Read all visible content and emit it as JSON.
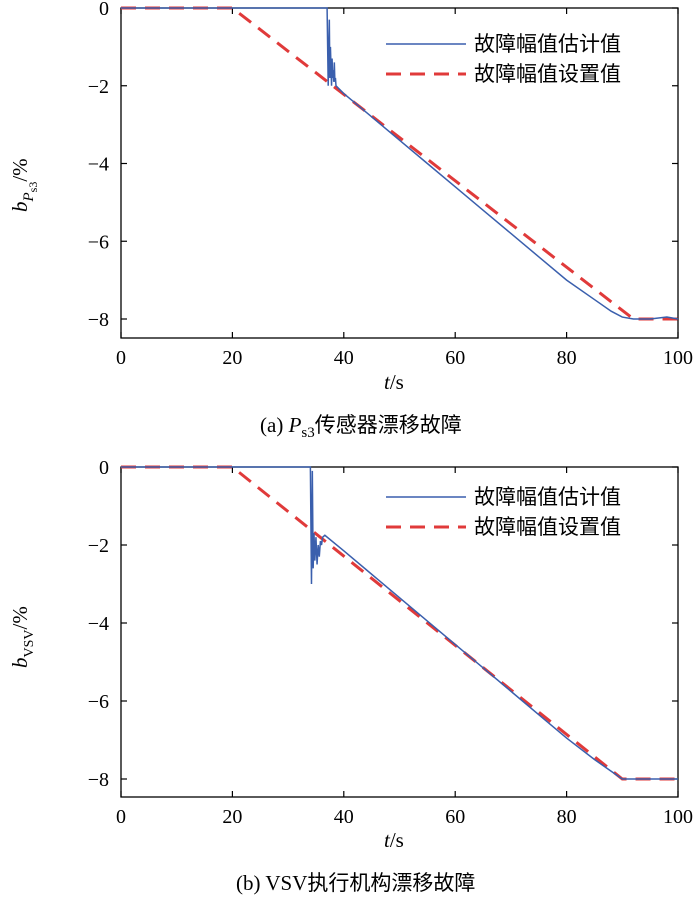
{
  "figure": {
    "colors": {
      "estimate": "#3a5fad",
      "setpoint": "#e03a3a",
      "axis": "#000000"
    }
  },
  "chart_data": [
    {
      "type": "line",
      "caption": "(a) Ps3传感器漂移故障",
      "caption_parts": {
        "prefix": "(a) ",
        "var": "P",
        "sub": "s3",
        "rest": "传感器漂移故障"
      },
      "xlabel": "t/s",
      "xlabel_parts": {
        "var": "t",
        "unit": "/s"
      },
      "ylabel": "bPs3/%",
      "ylabel_parts": {
        "var": "b",
        "sub1": "P",
        "sub2": "s3",
        "unit": "/%"
      },
      "xlim": [
        0,
        100
      ],
      "ylim": [
        -8.6,
        0
      ],
      "xticks": [
        "0",
        "20",
        "40",
        "60",
        "80",
        "100"
      ],
      "yticks": [
        "0",
        "−2",
        "−4",
        "−6",
        "−8"
      ],
      "legend": {
        "position": "top-right"
      },
      "series": [
        {
          "name": "故障幅值估计值",
          "style": "solid",
          "x": [
            0,
            37,
            37.2,
            37.4,
            37.5,
            37.6,
            37.7,
            37.8,
            37.9,
            38.0,
            38.1,
            38.2,
            38.3,
            38.4,
            38.5,
            38.6,
            40,
            45,
            50,
            55,
            60,
            65,
            70,
            75,
            80,
            85,
            88,
            90,
            92,
            95,
            98,
            100
          ],
          "y": [
            0,
            0,
            -2.0,
            -0.3,
            -1.8,
            -1.0,
            -1.5,
            -2.0,
            -1.3,
            -1.8,
            -1.6,
            -1.9,
            -1.4,
            -1.9,
            -1.8,
            -2.0,
            -2.2,
            -2.8,
            -3.4,
            -4.0,
            -4.6,
            -5.2,
            -5.8,
            -6.4,
            -7.0,
            -7.5,
            -7.8,
            -7.95,
            -8.0,
            -8.0,
            -7.95,
            -8.0
          ]
        },
        {
          "name": "故障幅值设置值",
          "style": "dashed",
          "x": [
            0,
            20,
            92,
            100
          ],
          "y": [
            0,
            0,
            -8,
            -8
          ]
        }
      ]
    },
    {
      "type": "line",
      "caption": "(b) VSV执行机构漂移故障",
      "caption_parts": {
        "prefix": "(b) ",
        "var": "",
        "sub": "",
        "rest": "VSV执行机构漂移故障"
      },
      "xlabel": "t/s",
      "xlabel_parts": {
        "var": "t",
        "unit": "/s"
      },
      "ylabel": "bVSV/%",
      "ylabel_parts": {
        "var": "b",
        "sub1": "VSV",
        "sub2": "",
        "unit": "/%"
      },
      "xlim": [
        0,
        100
      ],
      "ylim": [
        -8.6,
        0
      ],
      "xticks": [
        "0",
        "20",
        "40",
        "60",
        "80",
        "100"
      ],
      "yticks": [
        "0",
        "−2",
        "−4",
        "−6",
        "−8"
      ],
      "legend": {
        "position": "top-right"
      },
      "series": [
        {
          "name": "故障幅值估计值",
          "style": "solid",
          "x": [
            0,
            34,
            34.2,
            34.35,
            34.5,
            34.65,
            34.8,
            35.0,
            35.2,
            35.4,
            35.6,
            35.8,
            36.0,
            36.2,
            36.6,
            40,
            45,
            50,
            55,
            60,
            65,
            70,
            75,
            80,
            85,
            88,
            90,
            92,
            95,
            100
          ],
          "y": [
            0,
            0,
            -3.0,
            -0.1,
            -2.6,
            -1.7,
            -2.4,
            -1.8,
            -2.5,
            -2.0,
            -2.3,
            -1.9,
            -2.0,
            -1.8,
            -1.75,
            -2.15,
            -2.75,
            -3.35,
            -3.95,
            -4.55,
            -5.15,
            -5.75,
            -6.35,
            -6.95,
            -7.5,
            -7.8,
            -8.0,
            -8.0,
            -8.0,
            -8.0
          ]
        },
        {
          "name": "故障幅值设置值",
          "style": "dashed",
          "x": [
            0,
            20,
            90,
            100
          ],
          "y": [
            0,
            0,
            -8,
            -8
          ]
        }
      ]
    }
  ]
}
